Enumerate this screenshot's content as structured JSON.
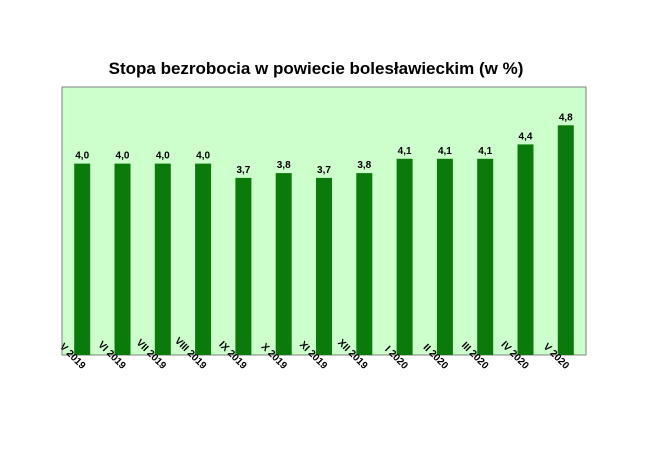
{
  "chart_data": {
    "type": "bar",
    "title": "Stopa bezrobocia w powiecie bolesławieckim (w %)",
    "categories": [
      "V 2019",
      "VI 2019",
      "VII 2019",
      "VIII 2019",
      "IX 2019",
      "X 2019",
      "XI 2019",
      "XII 2019",
      "I 2020",
      "II 2020",
      "III 2020",
      "IV 2020",
      "V 2020"
    ],
    "values": [
      4.0,
      4.0,
      4.0,
      4.0,
      3.7,
      3.8,
      3.7,
      3.8,
      4.1,
      4.1,
      4.1,
      4.4,
      4.8
    ],
    "data_labels": [
      "4,0",
      "4,0",
      "4,0",
      "4,0",
      "3,7",
      "3,8",
      "3,7",
      "3,8",
      "4,1",
      "4,1",
      "4,1",
      "4,4",
      "4,8"
    ],
    "xlabel": "",
    "ylabel": "",
    "ylim": [
      0,
      5.6
    ],
    "grid": false,
    "legend": "none",
    "colors": {
      "bar": "#0a7a0a",
      "plot_background": "#ccffcc",
      "plot_border": "#808080"
    }
  }
}
